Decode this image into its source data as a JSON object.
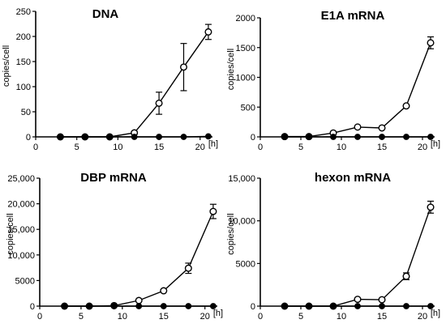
{
  "chart_data": [
    {
      "type": "line",
      "title": "DNA",
      "ylabel": "copies/cell",
      "xlabel": "",
      "x_unit": "[h]",
      "xlim": [
        0,
        21.5
      ],
      "ylim": [
        0,
        250
      ],
      "x_ticks": [
        0,
        5,
        10,
        15,
        20
      ],
      "y_ticks": [
        0,
        50,
        100,
        150,
        200,
        250
      ],
      "y_tick_labels": [
        "0",
        "50",
        "100",
        "150",
        "200",
        "250"
      ],
      "series": [
        {
          "marker": "open-circle",
          "x": [
            3,
            6,
            9,
            12,
            15,
            18,
            21
          ],
          "y": [
            0,
            0,
            0,
            8,
            67,
            139,
            209
          ],
          "err": [
            0,
            0,
            0,
            3,
            22,
            47,
            15
          ]
        },
        {
          "marker": "filled-circle",
          "x": [
            3,
            6,
            9,
            12,
            15,
            18,
            21
          ],
          "y": [
            0,
            0,
            0,
            0,
            0,
            0,
            1
          ],
          "err": [
            0,
            0,
            0,
            0,
            0,
            0,
            0
          ]
        }
      ]
    },
    {
      "type": "line",
      "title": "E1A mRNA",
      "ylabel": "copies/cell",
      "xlabel": "",
      "x_unit": "[h]",
      "xlim": [
        0,
        21.5
      ],
      "ylim": [
        0,
        2000
      ],
      "x_ticks": [
        0,
        5,
        10,
        15,
        20
      ],
      "y_ticks": [
        0,
        500,
        1000,
        1500,
        2000
      ],
      "y_tick_labels": [
        "0",
        "500",
        "1000",
        "1500",
        "2000"
      ],
      "series": [
        {
          "marker": "open-circle",
          "x": [
            3,
            6,
            9,
            12,
            15,
            18,
            21
          ],
          "y": [
            5,
            5,
            65,
            165,
            150,
            520,
            1580
          ],
          "err": [
            0,
            0,
            0,
            0,
            0,
            0,
            100
          ]
        },
        {
          "marker": "filled-circle",
          "x": [
            3,
            6,
            9,
            12,
            15,
            18,
            21
          ],
          "y": [
            0,
            0,
            0,
            0,
            0,
            0,
            0
          ],
          "err": [
            0,
            0,
            0,
            0,
            0,
            0,
            0
          ]
        }
      ]
    },
    {
      "type": "line",
      "title": "DBP mRNA",
      "ylabel": "copies/cell",
      "xlabel": "",
      "x_unit": "[h]",
      "xlim": [
        0,
        21.5
      ],
      "ylim": [
        0,
        25000
      ],
      "x_ticks": [
        0,
        5,
        10,
        15,
        20
      ],
      "y_ticks": [
        0,
        5000,
        10000,
        15000,
        20000,
        25000
      ],
      "y_tick_labels": [
        "0",
        "5000",
        "10,000",
        "15,000",
        "20,000",
        "25,000"
      ],
      "series": [
        {
          "marker": "open-circle",
          "x": [
            3,
            6,
            9,
            12,
            15,
            18,
            21
          ],
          "y": [
            0,
            0,
            100,
            1100,
            3000,
            7400,
            18500
          ],
          "err": [
            0,
            0,
            0,
            0,
            0,
            1000,
            1400
          ]
        },
        {
          "marker": "filled-circle",
          "x": [
            3,
            6,
            9,
            12,
            15,
            18,
            21
          ],
          "y": [
            0,
            0,
            0,
            0,
            0,
            0,
            0
          ],
          "err": [
            0,
            0,
            0,
            0,
            0,
            0,
            0
          ]
        }
      ]
    },
    {
      "type": "line",
      "title": "hexon mRNA",
      "ylabel": "copies/cell",
      "xlabel": "",
      "x_unit": "[h]",
      "xlim": [
        0,
        21.5
      ],
      "ylim": [
        0,
        15000
      ],
      "x_ticks": [
        0,
        5,
        10,
        15,
        20
      ],
      "y_ticks": [
        0,
        5000,
        10000,
        15000
      ],
      "y_tick_labels": [
        "0",
        "5000",
        "10,000",
        "15,000"
      ],
      "series": [
        {
          "marker": "open-circle",
          "x": [
            3,
            6,
            9,
            12,
            15,
            18,
            21
          ],
          "y": [
            0,
            0,
            0,
            800,
            750,
            3500,
            11600
          ],
          "err": [
            0,
            0,
            0,
            0,
            0,
            400,
            700
          ]
        },
        {
          "marker": "filled-circle",
          "x": [
            3,
            6,
            9,
            12,
            15,
            18,
            21
          ],
          "y": [
            0,
            0,
            0,
            0,
            0,
            0,
            0
          ],
          "err": [
            0,
            0,
            0,
            0,
            0,
            0,
            0
          ]
        }
      ]
    }
  ]
}
